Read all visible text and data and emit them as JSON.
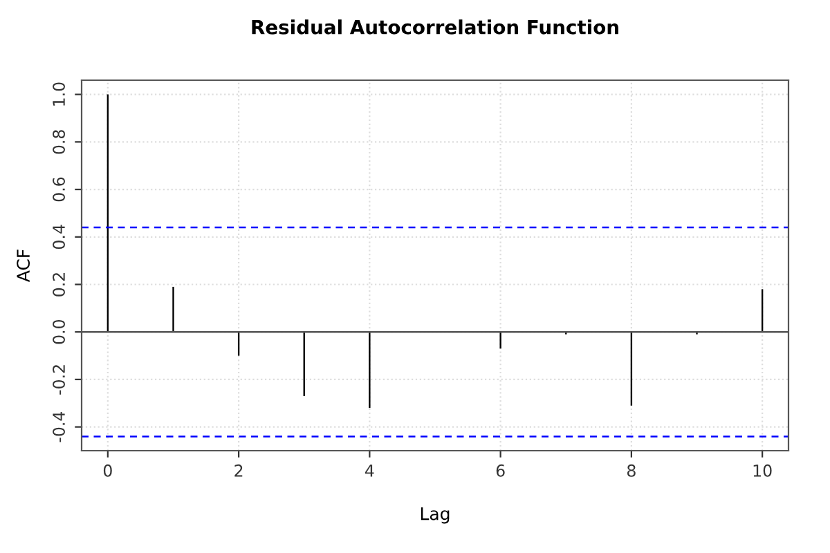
{
  "chart_data": {
    "type": "bar",
    "title": "Residual Autocorrelation Function",
    "xlabel": "Lag",
    "ylabel": "ACF",
    "x": [
      0,
      1,
      2,
      3,
      4,
      5,
      6,
      7,
      8,
      9,
      10
    ],
    "values": [
      1.0,
      0.19,
      -0.1,
      -0.27,
      -0.32,
      0.0,
      -0.07,
      -0.01,
      -0.31,
      -0.01,
      0.18
    ],
    "color": "#000000",
    "xlim": [
      -0.4,
      10.4
    ],
    "xticks": [
      0,
      2,
      4,
      6,
      8,
      10
    ],
    "ylim": [
      -0.5,
      1.06
    ],
    "yticks": [
      -0.4,
      -0.2,
      {
        "value": 0,
        "label": "0.0"
      },
      0.2,
      0.4,
      0.6,
      0.8,
      {
        "value": 1,
        "label": "1.0"
      }
    ],
    "grid": true,
    "ref_lines": [
      {
        "axis": "y",
        "value": 0,
        "color": "#555555",
        "line_style": "solid"
      },
      {
        "axis": "y",
        "value": 0.44,
        "color": "#0000ff",
        "line_style": "dashed"
      },
      {
        "axis": "y",
        "value": -0.44,
        "color": "#0000ff",
        "line_style": "dashed"
      }
    ]
  }
}
